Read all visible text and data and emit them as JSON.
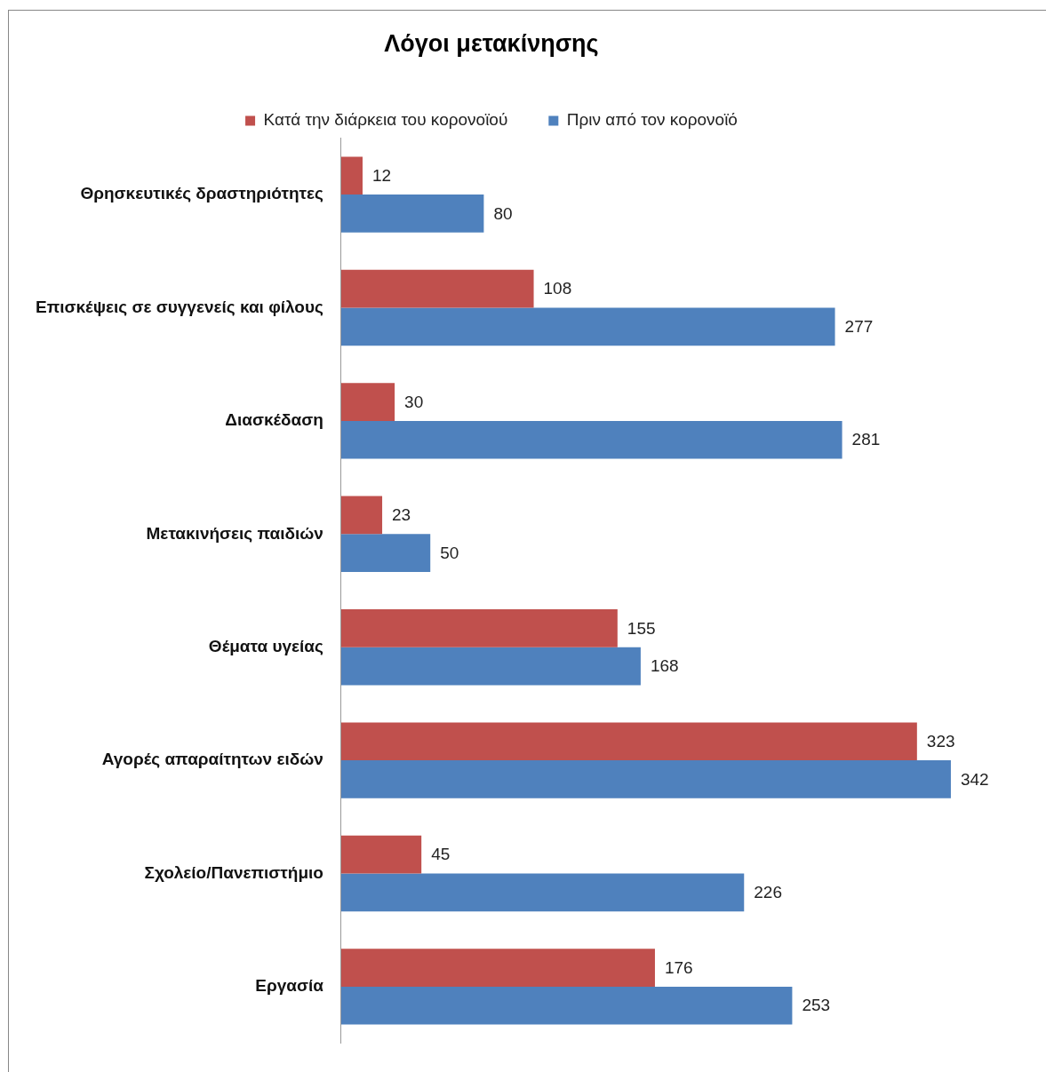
{
  "chart_data": {
    "type": "bar",
    "orientation": "horizontal",
    "title": "Λόγοι μετακίνησης",
    "categories": [
      "Θρησκευτικές δραστηριότητες",
      "Επισκέψεις σε συγγενείς και φίλους",
      "Διασκέδαση",
      "Μετακινήσεις παιδιών",
      "Θέματα υγείας",
      "Αγορές απαραίτητων ειδών",
      "Σχολείο/Πανεπιστήμιο",
      "Εργασία"
    ],
    "series": [
      {
        "name": "Κατά την διάρκεια του κορονοϊού",
        "color": "#c0504d",
        "values": [
          12,
          108,
          30,
          23,
          155,
          323,
          45,
          176
        ]
      },
      {
        "name": "Πριν από τον κορονοϊό",
        "color": "#4f81bd",
        "values": [
          80,
          277,
          281,
          50,
          168,
          342,
          226,
          253
        ]
      }
    ],
    "data_labels": true,
    "legend": "top",
    "tick_labels": "y"
  }
}
